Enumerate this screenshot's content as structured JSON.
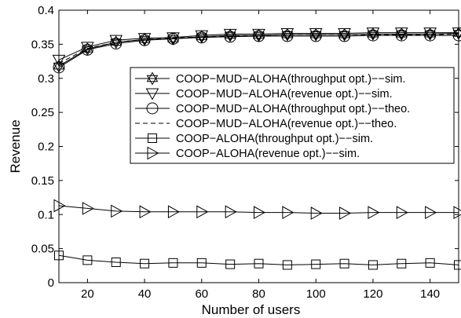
{
  "chart_data": {
    "type": "line",
    "xlabel": "Number of users",
    "ylabel": "Revenue",
    "xlim": [
      10,
      150
    ],
    "ylim": [
      0,
      0.4
    ],
    "x_ticks": [
      20,
      40,
      60,
      80,
      100,
      120,
      140
    ],
    "y_ticks": [
      0,
      0.05,
      0.1,
      0.15,
      0.2,
      0.25,
      0.3,
      0.35,
      0.4
    ],
    "y_tick_labels": [
      "0",
      "0.05",
      "0.1",
      "0.15",
      "0.2",
      "0.25",
      "0.3",
      "0.35",
      "0.4"
    ],
    "grid": false,
    "legend_position": "right",
    "x": [
      10,
      20,
      30,
      40,
      50,
      60,
      70,
      80,
      90,
      100,
      110,
      120,
      130,
      140,
      150
    ],
    "series": [
      {
        "name": "COOP−MUD−ALOHA(throughput opt.)−−sim.",
        "marker": "hexagram",
        "line": "solid",
        "values": [
          0.318,
          0.343,
          0.353,
          0.357,
          0.358,
          0.361,
          0.363,
          0.363,
          0.364,
          0.364,
          0.364,
          0.365,
          0.365,
          0.365,
          0.366
        ]
      },
      {
        "name": "COOP−MUD−ALOHA(revenue opt.)−−sim.",
        "marker": "triangle-down",
        "line": "solid",
        "values": [
          0.327,
          0.346,
          0.356,
          0.359,
          0.36,
          0.363,
          0.365,
          0.365,
          0.366,
          0.366,
          0.366,
          0.367,
          0.367,
          0.367,
          0.367
        ]
      },
      {
        "name": "COOP−MUD−ALOHA(throughput opt.)−−theo.",
        "marker": "circle",
        "line": "solid",
        "values": [
          0.316,
          0.342,
          0.351,
          0.356,
          0.358,
          0.36,
          0.361,
          0.362,
          0.362,
          0.362,
          0.362,
          0.363,
          0.363,
          0.363,
          0.363
        ]
      },
      {
        "name": "COOP−MUD−ALOHA(revenue opt.)−−theo.",
        "marker": "none",
        "line": "dashed",
        "values": [
          0.322,
          0.344,
          0.353,
          0.357,
          0.359,
          0.361,
          0.362,
          0.363,
          0.364,
          0.364,
          0.364,
          0.364,
          0.364,
          0.364,
          0.365
        ]
      },
      {
        "name": "COOP−ALOHA(throughput opt.)−−sim.",
        "marker": "square",
        "line": "solid",
        "values": [
          0.04,
          0.033,
          0.03,
          0.028,
          0.029,
          0.029,
          0.027,
          0.028,
          0.026,
          0.027,
          0.028,
          0.026,
          0.028,
          0.029,
          0.026
        ]
      },
      {
        "name": "COOP−ALOHA(revenue opt.)−−sim.",
        "marker": "triangle-right",
        "line": "solid",
        "values": [
          0.113,
          0.109,
          0.105,
          0.104,
          0.104,
          0.104,
          0.104,
          0.103,
          0.103,
          0.102,
          0.102,
          0.103,
          0.103,
          0.103,
          0.103
        ]
      }
    ]
  }
}
